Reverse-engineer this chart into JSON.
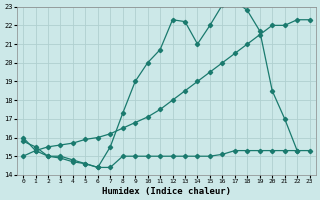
{
  "xlabel": "Humidex (Indice chaleur)",
  "bg_color": "#cce8e8",
  "grid_color": "#b0d0d0",
  "line_color": "#1a7a6e",
  "xlim": [
    -0.5,
    23.5
  ],
  "ylim": [
    14,
    23
  ],
  "yticks": [
    14,
    15,
    16,
    17,
    18,
    19,
    20,
    21,
    22,
    23
  ],
  "xticks": [
    0,
    1,
    2,
    3,
    4,
    5,
    6,
    7,
    8,
    9,
    10,
    11,
    12,
    13,
    14,
    15,
    16,
    17,
    18,
    19,
    20,
    21,
    22,
    23
  ],
  "line1_x": [
    0,
    1,
    2,
    3,
    4,
    5,
    6,
    7,
    8,
    9,
    10,
    11,
    12,
    13,
    14,
    15,
    16,
    17,
    18,
    19,
    20,
    21,
    22
  ],
  "line1_y": [
    16.0,
    15.3,
    15.0,
    14.9,
    14.7,
    14.6,
    14.4,
    15.5,
    17.3,
    19.0,
    20.0,
    20.7,
    22.3,
    22.2,
    21.0,
    22.0,
    23.1,
    23.3,
    22.8,
    21.7,
    18.5,
    17.0,
    15.3
  ],
  "line2_x": [
    0,
    1,
    2,
    3,
    4,
    5,
    6,
    7,
    8,
    9,
    10,
    11,
    12,
    13,
    14,
    15,
    16,
    17,
    18,
    19,
    20,
    21,
    22,
    23
  ],
  "line2_y": [
    15.0,
    15.3,
    15.5,
    15.6,
    15.7,
    15.9,
    16.0,
    16.2,
    16.5,
    16.8,
    17.1,
    17.5,
    18.0,
    18.5,
    19.0,
    19.5,
    20.0,
    20.5,
    21.0,
    21.5,
    22.0,
    22.0,
    22.3,
    22.3
  ],
  "line3_x": [
    0,
    1,
    2,
    3,
    4,
    5,
    6,
    7,
    8,
    9,
    10,
    11,
    12,
    13,
    14,
    15,
    16,
    17,
    18,
    19,
    20,
    21,
    22,
    23
  ],
  "line3_y": [
    15.8,
    15.5,
    15.0,
    15.0,
    14.8,
    14.6,
    14.4,
    14.4,
    15.0,
    15.0,
    15.0,
    15.0,
    15.0,
    15.0,
    15.0,
    15.0,
    15.1,
    15.3,
    15.3,
    15.3,
    15.3,
    15.3,
    15.3,
    15.3
  ]
}
